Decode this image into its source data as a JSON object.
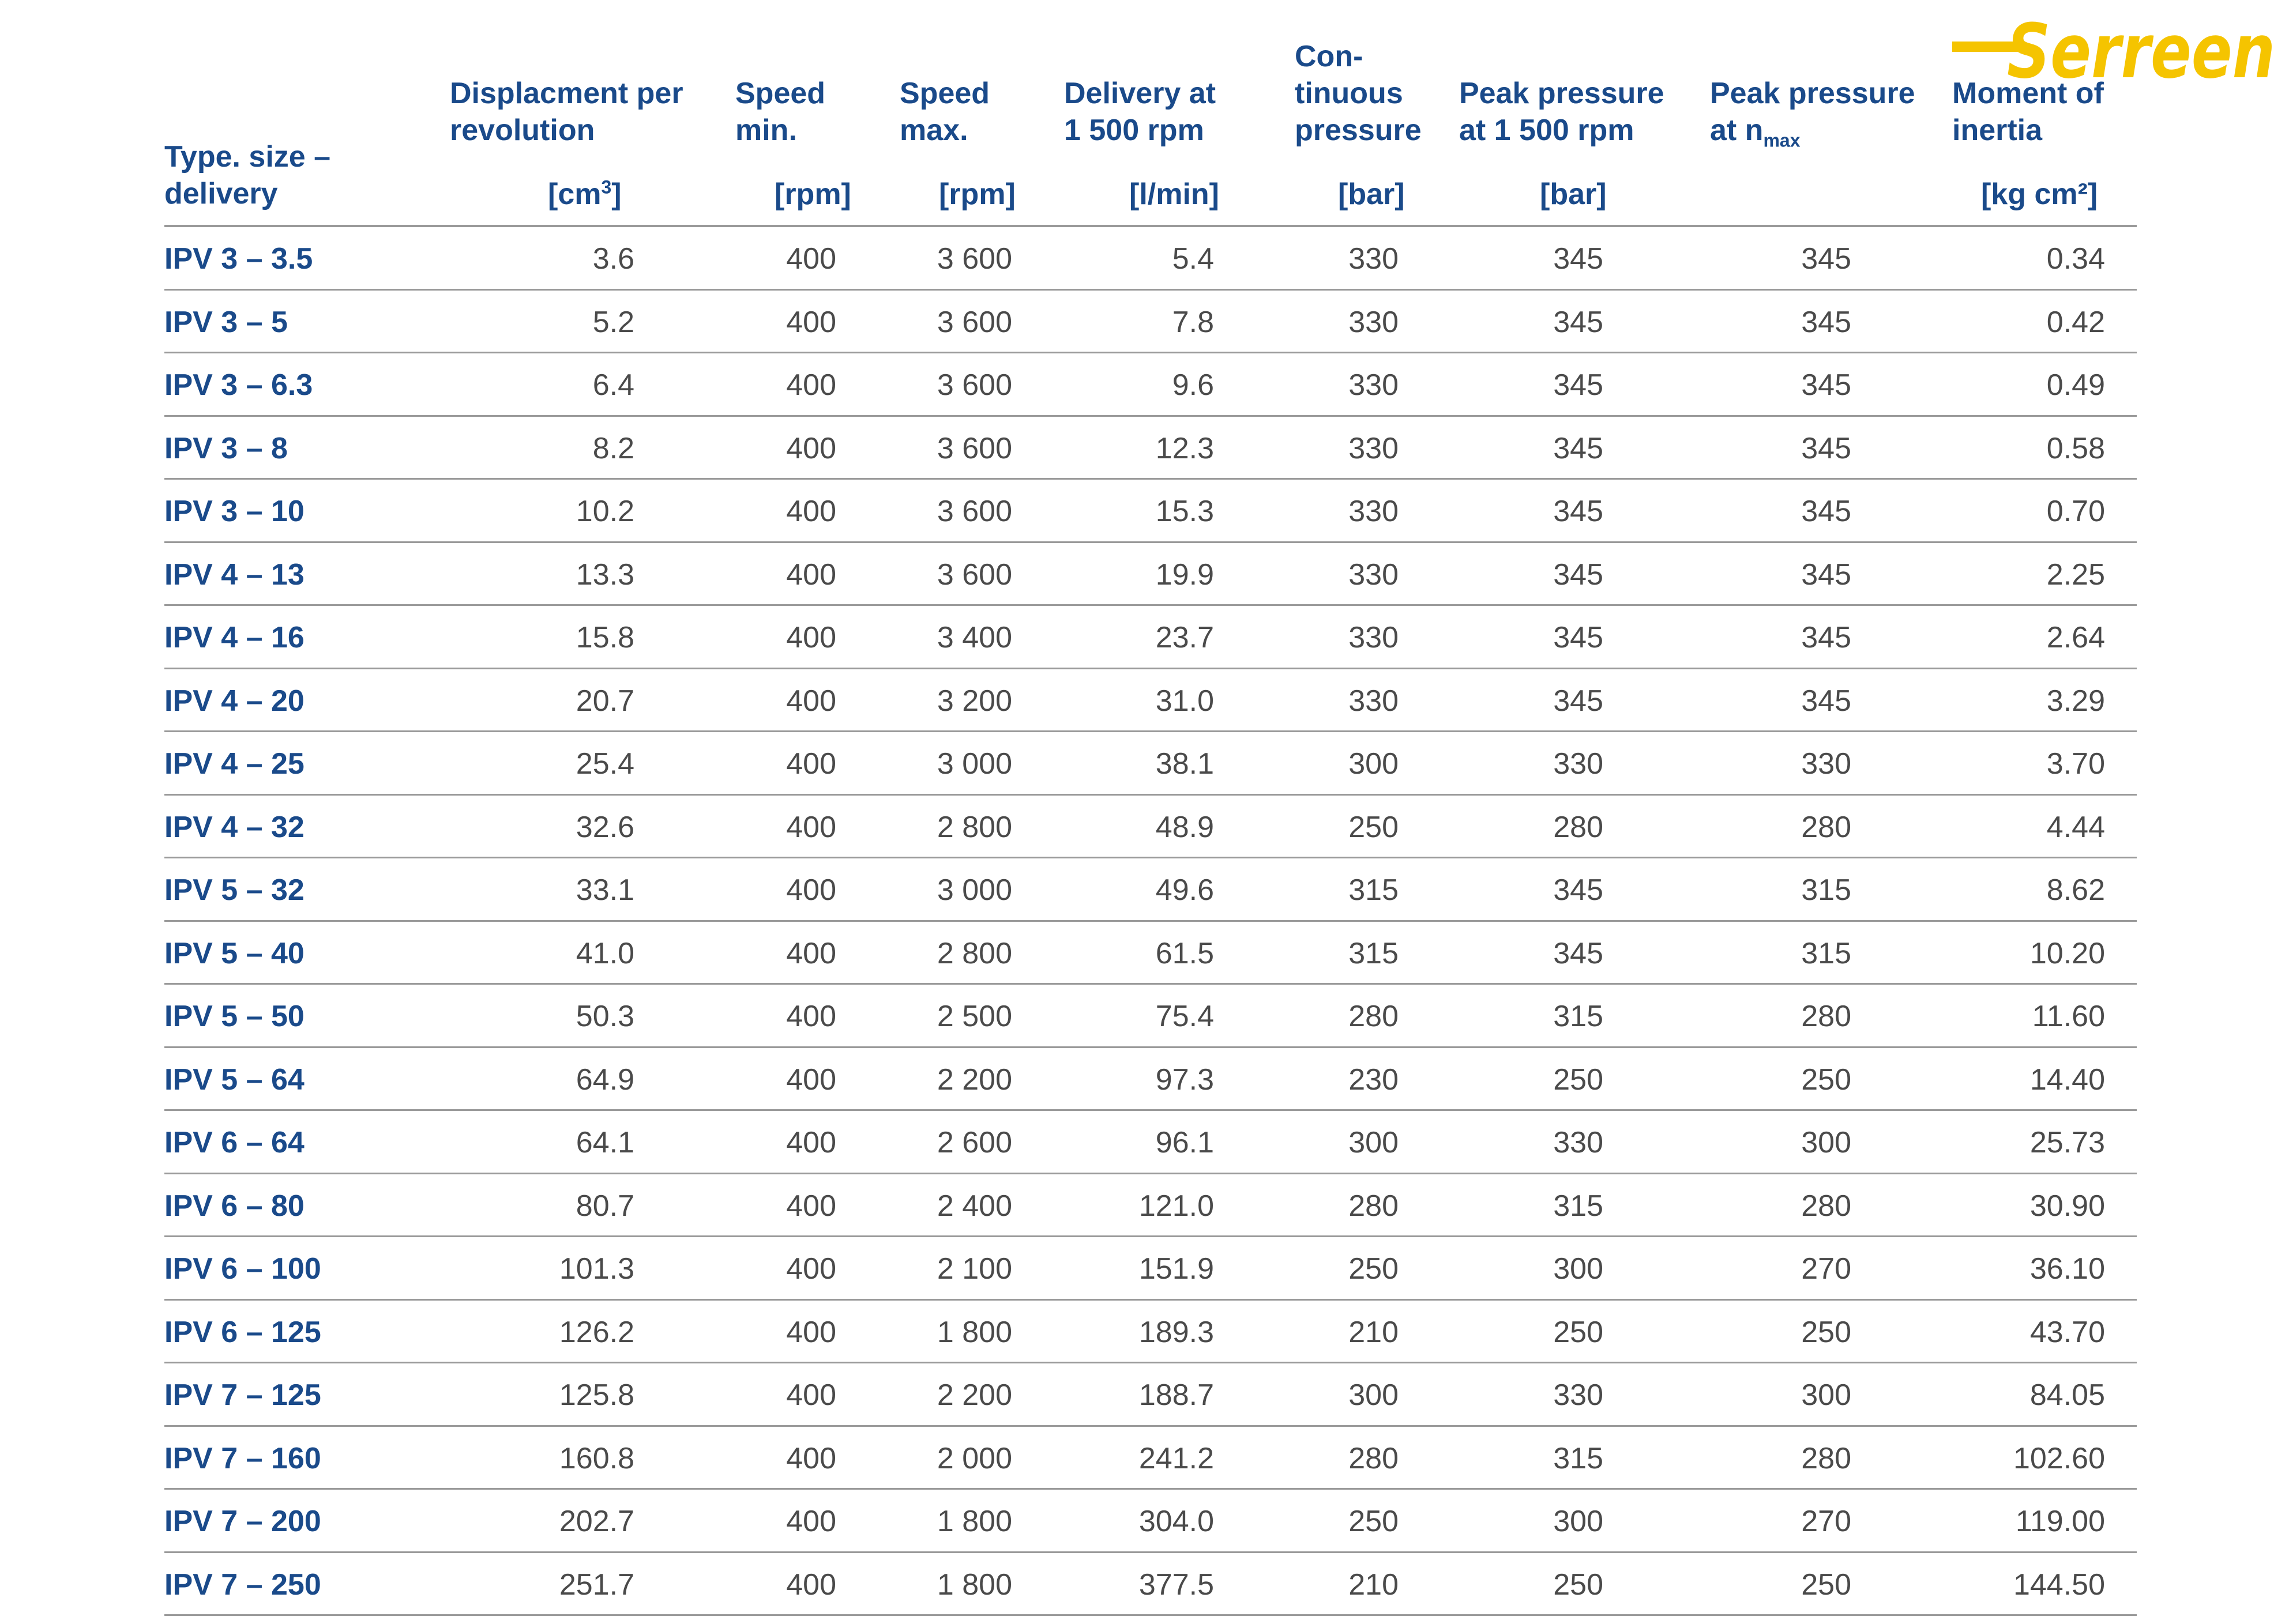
{
  "brand": {
    "logo_text": "Serreen",
    "color": "#f5c400"
  },
  "colors": {
    "header_text": "#1a4a8a",
    "body_text": "#4a4a4a",
    "rule": "#9a9a9a"
  },
  "header": {
    "type": {
      "line1": "Type. size –",
      "line2": "delivery",
      "unit": ""
    },
    "displacement": {
      "line1": "Displacment per",
      "line2": "revolution",
      "unit": "[cm",
      "unit_sup": "3",
      "unit_end": "]"
    },
    "speed_min": {
      "line1": "Speed",
      "line2": "min.",
      "unit": "[rpm]"
    },
    "speed_max": {
      "line1": "Speed",
      "line2": "max.",
      "unit": "[rpm]"
    },
    "delivery": {
      "line1": "Delivery at",
      "line2": "1 500 rpm",
      "unit": "[l/min]"
    },
    "cont_pressure": {
      "line0": "Con-",
      "line1": "tinuous",
      "line2": "pressure",
      "unit": "[bar]"
    },
    "peak_1500": {
      "line1": "Peak pressure",
      "line2": "at 1 500 rpm",
      "unit": "[bar]"
    },
    "peak_nmax": {
      "line1": "Peak pressure",
      "line2": "at n",
      "line2_sub": "max",
      "unit": ""
    },
    "inertia": {
      "line1": "Moment of",
      "line2": "inertia",
      "unit": "[kg cm²]"
    }
  },
  "rows": [
    [
      "IPV 3 – 3.5",
      "3.6",
      "400",
      "3 600",
      "5.4",
      "330",
      "345",
      "345",
      "0.34"
    ],
    [
      "IPV 3 – 5",
      "5.2",
      "400",
      "3 600",
      "7.8",
      "330",
      "345",
      "345",
      "0.42"
    ],
    [
      "IPV 3 – 6.3",
      "6.4",
      "400",
      "3 600",
      "9.6",
      "330",
      "345",
      "345",
      "0.49"
    ],
    [
      "IPV 3 – 8",
      "8.2",
      "400",
      "3 600",
      "12.3",
      "330",
      "345",
      "345",
      "0.58"
    ],
    [
      "IPV 3 – 10",
      "10.2",
      "400",
      "3 600",
      "15.3",
      "330",
      "345",
      "345",
      "0.70"
    ],
    [
      "IPV 4 – 13",
      "13.3",
      "400",
      "3 600",
      "19.9",
      "330",
      "345",
      "345",
      "2.25"
    ],
    [
      "IPV 4 – 16",
      "15.8",
      "400",
      "3 400",
      "23.7",
      "330",
      "345",
      "345",
      "2.64"
    ],
    [
      "IPV 4 – 20",
      "20.7",
      "400",
      "3 200",
      "31.0",
      "330",
      "345",
      "345",
      "3.29"
    ],
    [
      "IPV 4 – 25",
      "25.4",
      "400",
      "3 000",
      "38.1",
      "300",
      "330",
      "330",
      "3.70"
    ],
    [
      "IPV 4 – 32",
      "32.6",
      "400",
      "2 800",
      "48.9",
      "250",
      "280",
      "280",
      "4.44"
    ],
    [
      "IPV 5 – 32",
      "33.1",
      "400",
      "3 000",
      "49.6",
      "315",
      "345",
      "315",
      "8.62"
    ],
    [
      "IPV 5 – 40",
      "41.0",
      "400",
      "2 800",
      "61.5",
      "315",
      "345",
      "315",
      "10.20"
    ],
    [
      "IPV 5 – 50",
      "50.3",
      "400",
      "2 500",
      "75.4",
      "280",
      "315",
      "280",
      "11.60"
    ],
    [
      "IPV 5 – 64",
      "64.9",
      "400",
      "2 200",
      "97.3",
      "230",
      "250",
      "250",
      "14.40"
    ],
    [
      "IPV 6 – 64",
      "64.1",
      "400",
      "2 600",
      "96.1",
      "300",
      "330",
      "300",
      "25.73"
    ],
    [
      "IPV 6 – 80",
      "80.7",
      "400",
      "2 400",
      "121.0",
      "280",
      "315",
      "280",
      "30.90"
    ],
    [
      "IPV 6 – 100",
      "101.3",
      "400",
      "2 100",
      "151.9",
      "250",
      "300",
      "270",
      "36.10"
    ],
    [
      "IPV 6 – 125",
      "126.2",
      "400",
      "1 800",
      "189.3",
      "210",
      "250",
      "250",
      "43.70"
    ],
    [
      "IPV 7 – 125",
      "125.8",
      "400",
      "2 200",
      "188.7",
      "300",
      "330",
      "300",
      "84.05"
    ],
    [
      "IPV 7 – 160",
      "160.8",
      "400",
      "2 000",
      "241.2",
      "280",
      "315",
      "280",
      "102.60"
    ],
    [
      "IPV 7 – 200",
      "202.7",
      "400",
      "1 800",
      "304.0",
      "250",
      "300",
      "270",
      "119.00"
    ],
    [
      "IPV 7 – 250",
      "251.7",
      "400",
      "1 800",
      "377.5",
      "210",
      "250",
      "250",
      "144.50"
    ]
  ]
}
